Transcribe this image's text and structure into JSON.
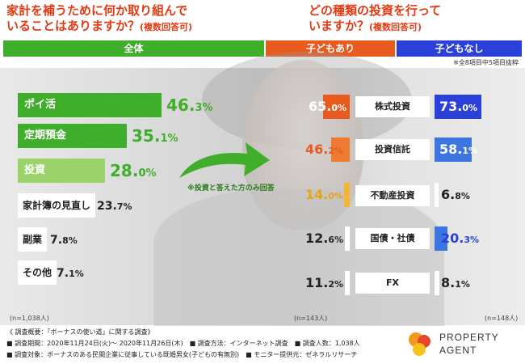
{
  "titles": {
    "left_line1": "家計を補うために何か取り組んで",
    "left_line2": "いることはありますか？",
    "left_sub": "(複数回答可)",
    "right_line1": "どの種類の投資を行って",
    "right_line2": "いますか？",
    "right_sub": "(複数回答可)"
  },
  "headers": {
    "all": "全体",
    "with_children": "子どもあり",
    "without_children": "子どもなし"
  },
  "note_top": "※全8項目中5項目抜粋",
  "arrow_note": "※投資と答えた方のみ回答",
  "n_labels": {
    "left": "(n=1,038人)",
    "middle": "(n=143人)",
    "right": "(n=148人)"
  },
  "colors": {
    "green": "#3fae2a",
    "light_green": "#9bd26a",
    "orange": "#e85a1e",
    "orange_mid": "#ee7b2f",
    "yellow": "#f2b632",
    "blue": "#2b3fd9",
    "blue_mid": "#3e74e0",
    "title_red": "#e23a14"
  },
  "chart_data": [
    {
      "type": "bar",
      "title": "家計を補うために何か取り組んでいることはありますか？(複数回答可)",
      "series": [
        {
          "name": "全体",
          "values": [
            46.3,
            35.1,
            28.0,
            23.7,
            7.8,
            7.1
          ]
        }
      ],
      "categories": [
        "ポイ活",
        "定期預金",
        "投資",
        "家計簿の見直し",
        "副業",
        "その他"
      ],
      "value_labels": [
        "46.3%",
        "35.1%",
        "28.0%",
        "23.7%",
        "7.8%",
        "7.1%"
      ],
      "n": "(n=1,038人)"
    },
    {
      "type": "bar",
      "title": "どの種類の投資を行っていますか？(複数回答可)",
      "categories": [
        "株式投資",
        "投資信託",
        "不動産投資",
        "国債・社債",
        "FX"
      ],
      "series": [
        {
          "name": "子どもあり",
          "values": [
            65.0,
            46.2,
            14.0,
            12.6,
            11.2
          ],
          "value_labels": [
            "65.0%",
            "46.2%",
            "14.0%",
            "12.6%",
            "11.2%"
          ]
        },
        {
          "name": "子どもなし",
          "values": [
            73.0,
            58.1,
            6.8,
            20.3,
            8.1
          ],
          "value_labels": [
            "73.0%",
            "58.1%",
            "6.8%",
            "20.3%",
            "8.1%"
          ]
        }
      ],
      "n": [
        "(n=143人)",
        "(n=148人)"
      ]
    }
  ],
  "footer": {
    "line1": "《 調査概要：「ボーナスの使い道」に関する調査》",
    "line2": "■ 調査期間：2020年11月24日(火)～ 2020年11月26日(木)　■ 調査方法：インターネット調査　■ 調査人数：1,038人",
    "line3": "■ 調査対象：ボーナスのある民間企業に従事している既婚男女(子どもの有無別)　■ モニター提供元：ゼネラルリサーチ",
    "logo_line1": "PROPERTY",
    "logo_line2": "AGENT"
  }
}
